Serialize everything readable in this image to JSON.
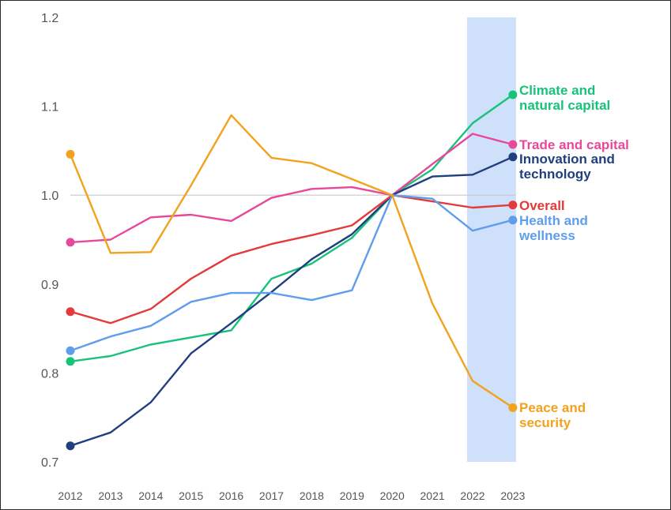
{
  "chart_data": {
    "type": "line",
    "x": [
      "2012",
      "2013",
      "2014",
      "2015",
      "2016",
      "2017",
      "2018",
      "2019",
      "2020",
      "2021",
      "2022",
      "2023"
    ],
    "ylim": [
      0.7,
      1.2
    ],
    "yticks": [
      "0.7",
      "0.8",
      "0.9",
      "1.0",
      "1.1",
      "1.2"
    ],
    "reference_line": 1.0,
    "highlight_range": [
      "2022",
      "2023"
    ],
    "highlight_color": "#cfe0fb",
    "series": [
      {
        "name": "Climate and natural capital",
        "label_lines": [
          "Climate and",
          "natural capital"
        ],
        "color": "#17c27a",
        "values": [
          0.813,
          0.819,
          0.832,
          0.84,
          0.848,
          0.906,
          0.923,
          0.952,
          1.0,
          1.029,
          1.081,
          1.113
        ]
      },
      {
        "name": "Trade and capital",
        "label_lines": [
          "Trade and capital"
        ],
        "color": "#e8489a",
        "values": [
          0.947,
          0.95,
          0.975,
          0.978,
          0.971,
          0.997,
          1.007,
          1.009,
          1.0,
          1.035,
          1.069,
          1.057
        ]
      },
      {
        "name": "Innovation and technology",
        "label_lines": [
          "Innovation and",
          "technology"
        ],
        "color": "#1f3f7e",
        "values": [
          0.718,
          0.733,
          0.767,
          0.822,
          0.856,
          0.891,
          0.928,
          0.956,
          1.0,
          1.021,
          1.023,
          1.043
        ]
      },
      {
        "name": "Overall",
        "label_lines": [
          "Overall"
        ],
        "color": "#e33a3a",
        "values": [
          0.869,
          0.856,
          0.872,
          0.906,
          0.932,
          0.945,
          0.955,
          0.966,
          1.0,
          0.993,
          0.986,
          0.989
        ]
      },
      {
        "name": "Health and wellness",
        "label_lines": [
          "Health and",
          "wellness"
        ],
        "color": "#5f9ded",
        "values": [
          0.825,
          0.841,
          0.853,
          0.88,
          0.89,
          0.89,
          0.882,
          0.893,
          1.0,
          0.996,
          0.96,
          0.972
        ]
      },
      {
        "name": "Peace and security",
        "label_lines": [
          "Peace and",
          "security"
        ],
        "color": "#f2a21c",
        "values": [
          1.046,
          0.935,
          0.936,
          1.011,
          1.09,
          1.042,
          1.036,
          1.018,
          1.0,
          0.878,
          0.791,
          0.761
        ]
      }
    ]
  }
}
